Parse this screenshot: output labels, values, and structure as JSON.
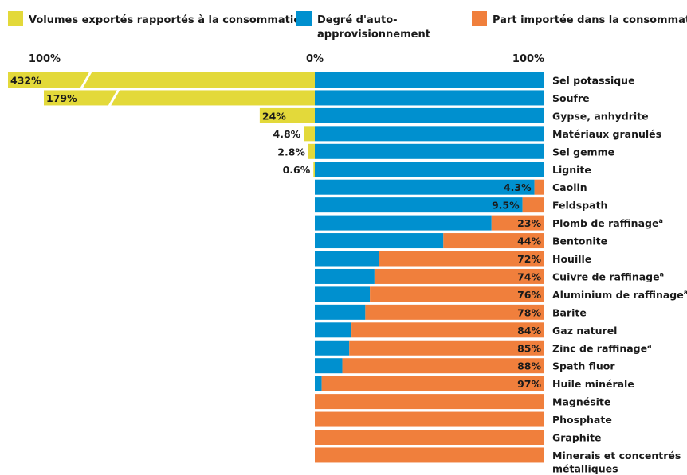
{
  "chart_data": {
    "type": "bar",
    "orientation": "horizontal",
    "legend": {
      "placement": "top",
      "exported": "Volumes exportés rapportés à la consommation",
      "self_line1": "Degré d'auto-",
      "self_line2": "approvisionnement",
      "imported": "Part importée dans la consommation"
    },
    "axis": {
      "left_tick": "100%",
      "center_tick": "0%",
      "right_tick": "100%"
    },
    "colors": {
      "exported": "#e3d93a",
      "self": "#0090cf",
      "imported": "#f07f3c",
      "text": "#1a1a1a"
    },
    "categories": [
      {
        "name": "Sel potassique",
        "exported": 432,
        "exported_label": "432%",
        "broken": true,
        "imported": 0,
        "imported_label": ""
      },
      {
        "name": "Soufre",
        "exported": 179,
        "exported_label": "179%",
        "broken": true,
        "imported": 0,
        "imported_label": ""
      },
      {
        "name": "Gypse, anhydrite",
        "exported": 24,
        "exported_label": "24%",
        "broken": false,
        "imported": 0,
        "imported_label": ""
      },
      {
        "name": "Matériaux granulés",
        "exported": 4.8,
        "exported_label": "4.8%",
        "broken": false,
        "imported": 0,
        "imported_label": ""
      },
      {
        "name": "Sel gemme",
        "exported": 2.8,
        "exported_label": "2.8%",
        "broken": false,
        "imported": 0,
        "imported_label": ""
      },
      {
        "name": "Lignite",
        "exported": 0.6,
        "exported_label": "0.6%",
        "broken": false,
        "imported": 0,
        "imported_label": ""
      },
      {
        "name": "Caolin",
        "exported": 0,
        "exported_label": "",
        "broken": false,
        "imported": 4.3,
        "imported_label": "4.3%"
      },
      {
        "name": "Feldspath",
        "exported": 0,
        "exported_label": "",
        "broken": false,
        "imported": 9.5,
        "imported_label": "9.5%"
      },
      {
        "name": "Plomb de raffinage",
        "sup": "a",
        "exported": 0,
        "exported_label": "",
        "broken": false,
        "imported": 23,
        "imported_label": "23%"
      },
      {
        "name": "Bentonite",
        "exported": 0,
        "exported_label": "",
        "broken": false,
        "imported": 44,
        "imported_label": "44%"
      },
      {
        "name": "Houille",
        "exported": 0,
        "exported_label": "",
        "broken": false,
        "imported": 72,
        "imported_label": "72%"
      },
      {
        "name": "Cuivre de raffinage",
        "sup": "a",
        "exported": 0,
        "exported_label": "",
        "broken": false,
        "imported": 74,
        "imported_label": "74%"
      },
      {
        "name": "Aluminium de raffinage",
        "sup": "a",
        "exported": 0,
        "exported_label": "",
        "broken": false,
        "imported": 76,
        "imported_label": "76%"
      },
      {
        "name": "Barite",
        "exported": 0,
        "exported_label": "",
        "broken": false,
        "imported": 78,
        "imported_label": "78%"
      },
      {
        "name": "Gaz naturel",
        "exported": 0,
        "exported_label": "",
        "broken": false,
        "imported": 84,
        "imported_label": "84%"
      },
      {
        "name": "Zinc de raffinage",
        "sup": "a",
        "exported": 0,
        "exported_label": "",
        "broken": false,
        "imported": 85,
        "imported_label": "85%"
      },
      {
        "name": "Spath fluor",
        "exported": 0,
        "exported_label": "",
        "broken": false,
        "imported": 88,
        "imported_label": "88%"
      },
      {
        "name": "Huile minérale",
        "exported": 0,
        "exported_label": "",
        "broken": false,
        "imported": 97,
        "imported_label": "97%"
      },
      {
        "name": "Magnésite",
        "exported": 0,
        "exported_label": "",
        "broken": false,
        "imported": 100,
        "imported_label": ""
      },
      {
        "name": "Phosphate",
        "exported": 0,
        "exported_label": "",
        "broken": false,
        "imported": 100,
        "imported_label": ""
      },
      {
        "name": "Graphite",
        "exported": 0,
        "exported_label": "",
        "broken": false,
        "imported": 100,
        "imported_label": ""
      },
      {
        "name": "Minerais et concentrés",
        "name_line2": "métalliques",
        "exported": 0,
        "exported_label": "",
        "broken": false,
        "imported": 100,
        "imported_label": ""
      }
    ]
  }
}
